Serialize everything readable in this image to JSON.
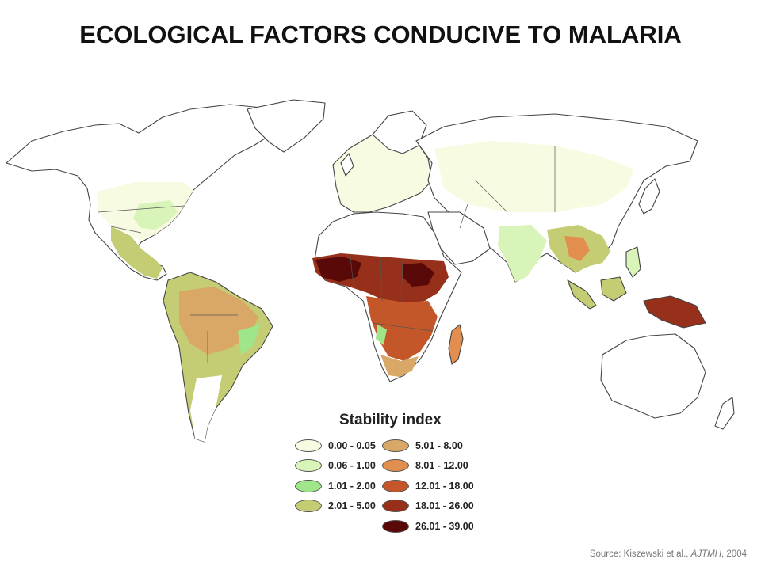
{
  "title": "ECOLOGICAL FACTORS CONDUCIVE TO MALARIA",
  "legend": {
    "title": "Stability index",
    "left_items": [
      {
        "label": "0.00 - 0.05",
        "color": "#f7fbe1"
      },
      {
        "label": "0.06 - 1.00",
        "color": "#d9f4b8"
      },
      {
        "label": "1.01 - 2.00",
        "color": "#9fe68a"
      },
      {
        "label": "2.01 - 5.00",
        "color": "#c5cd74"
      }
    ],
    "right_items": [
      {
        "label": "5.01 - 8.00",
        "color": "#d9a867"
      },
      {
        "label": "8.01 - 12.00",
        "color": "#e28e4f"
      },
      {
        "label": "12.01 - 18.00",
        "color": "#c4572a"
      },
      {
        "label": "18.01 - 26.00",
        "color": "#96301a"
      },
      {
        "label": "26.01 - 39.00",
        "color": "#5a0909"
      }
    ]
  },
  "source": {
    "prefix": "Source: Kiszewski et al., ",
    "journal": "AJTMH",
    "suffix": ", 2004"
  },
  "colors": {
    "unshaded": "#ffffff",
    "low": "#f7fbe1",
    "very_low": "#d9f4b8",
    "green": "#9fe68a",
    "olive": "#c5cd74",
    "tan": "#d9a867",
    "orange": "#e28e4f",
    "rust": "#c4572a",
    "brown": "#96301a",
    "maroon": "#5a0909"
  }
}
